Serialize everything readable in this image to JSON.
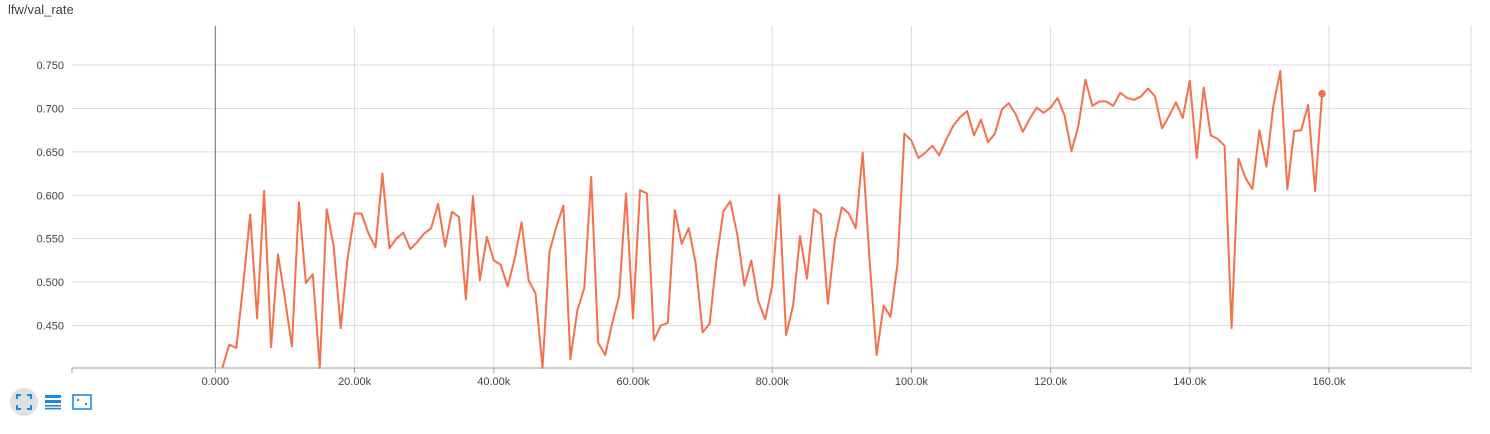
{
  "title": "lfw/val_rate",
  "colors": {
    "series": "#f4714b",
    "grid": "#dcdcdc",
    "axis": "#9e9e9e",
    "zero_line": "#8a8a8a",
    "icon": "#1e88e5"
  },
  "toolbar": {
    "buttons": [
      {
        "name": "fit-domain-icon",
        "active": true
      },
      {
        "name": "log-scale-icon",
        "active": false
      },
      {
        "name": "toggle-y-axis-icon",
        "active": false
      }
    ]
  },
  "chart_data": {
    "type": "line",
    "title": "lfw/val_rate",
    "xlabel": "",
    "ylabel": "",
    "xlim": [
      -20600,
      180400
    ],
    "ylim": [
      0.401,
      0.795
    ],
    "x_ticks": [
      0,
      20000,
      40000,
      60000,
      80000,
      100000,
      120000,
      140000,
      160000
    ],
    "x_tick_labels": [
      "0.000",
      "20.00k",
      "40.00k",
      "60.00k",
      "80.00k",
      "100.0k",
      "120.0k",
      "140.0k",
      "160.0k"
    ],
    "y_ticks": [
      0.45,
      0.5,
      0.55,
      0.6,
      0.65,
      0.7,
      0.75
    ],
    "y_tick_labels": [
      "0.450",
      "0.500",
      "0.550",
      "0.600",
      "0.650",
      "0.700",
      "0.750"
    ],
    "grid": true,
    "series": [
      {
        "name": "",
        "x": [
          1000,
          2000,
          3000,
          4000,
          5000,
          6000,
          7000,
          8000,
          9000,
          10000,
          11000,
          12000,
          13000,
          14000,
          15000,
          16000,
          17000,
          18000,
          19000,
          20000,
          21000,
          22000,
          23000,
          24000,
          25000,
          26000,
          27000,
          28000,
          29000,
          30000,
          31000,
          32000,
          33000,
          34000,
          35000,
          36000,
          37000,
          38000,
          39000,
          40000,
          41000,
          42000,
          43000,
          44000,
          45000,
          46000,
          47000,
          48000,
          49000,
          50000,
          51000,
          52000,
          53000,
          54000,
          55000,
          56000,
          57000,
          58000,
          59000,
          60000,
          61000,
          62000,
          63000,
          64000,
          65000,
          66000,
          67000,
          68000,
          69000,
          70000,
          71000,
          72000,
          73000,
          74000,
          75000,
          76000,
          77000,
          78000,
          79000,
          80000,
          81000,
          82000,
          83000,
          84000,
          85000,
          86000,
          87000,
          88000,
          89000,
          90000,
          91000,
          92000,
          93000,
          94000,
          95000,
          96000,
          97000,
          98000,
          99000,
          100000,
          101000,
          102000,
          103000,
          104000,
          105000,
          106000,
          107000,
          108000,
          109000,
          110000,
          111000,
          112000,
          113000,
          114000,
          115000,
          116000,
          117000,
          118000,
          119000,
          120000,
          121000,
          122000,
          123000,
          124000,
          125000,
          126000,
          127000,
          128000,
          129000,
          130000,
          131000,
          132000,
          133000,
          134000,
          135000,
          136000,
          137000,
          138000,
          139000,
          140000,
          141000,
          142000,
          143000,
          144000,
          145000,
          146000,
          147000,
          148000,
          149000,
          150000,
          151000,
          152000,
          153000,
          154000,
          155000,
          156000,
          157000,
          158000,
          159000
        ],
        "values": [
          0.401,
          0.428,
          0.424,
          0.497,
          0.578,
          0.458,
          0.605,
          0.425,
          0.532,
          0.48,
          0.426,
          0.592,
          0.499,
          0.509,
          0.401,
          0.584,
          0.541,
          0.447,
          0.527,
          0.579,
          0.579,
          0.556,
          0.54,
          0.625,
          0.539,
          0.55,
          0.557,
          0.538,
          0.546,
          0.556,
          0.562,
          0.59,
          0.541,
          0.581,
          0.575,
          0.48,
          0.599,
          0.502,
          0.552,
          0.525,
          0.52,
          0.495,
          0.527,
          0.569,
          0.502,
          0.487,
          0.401,
          0.535,
          0.564,
          0.588,
          0.411,
          0.467,
          0.493,
          0.621,
          0.43,
          0.416,
          0.452,
          0.484,
          0.602,
          0.458,
          0.606,
          0.602,
          0.433,
          0.45,
          0.453,
          0.583,
          0.544,
          0.562,
          0.522,
          0.442,
          0.452,
          0.526,
          0.582,
          0.593,
          0.554,
          0.496,
          0.525,
          0.478,
          0.457,
          0.496,
          0.6,
          0.439,
          0.473,
          0.553,
          0.504,
          0.584,
          0.578,
          0.475,
          0.548,
          0.586,
          0.579,
          0.562,
          0.649,
          0.525,
          0.416,
          0.473,
          0.46,
          0.521,
          0.671,
          0.663,
          0.643,
          0.649,
          0.657,
          0.646,
          0.664,
          0.68,
          0.69,
          0.697,
          0.669,
          0.687,
          0.661,
          0.671,
          0.699,
          0.706,
          0.693,
          0.673,
          0.688,
          0.701,
          0.695,
          0.701,
          0.712,
          0.692,
          0.651,
          0.68,
          0.733,
          0.703,
          0.708,
          0.708,
          0.703,
          0.718,
          0.712,
          0.71,
          0.714,
          0.723,
          0.714,
          0.677,
          0.691,
          0.707,
          0.689,
          0.732,
          0.643,
          0.724,
          0.669,
          0.665,
          0.657,
          0.447,
          0.642,
          0.62,
          0.607,
          0.675,
          0.633,
          0.703,
          0.743,
          0.607,
          0.674,
          0.675,
          0.704,
          0.605,
          0.717
        ]
      }
    ]
  }
}
